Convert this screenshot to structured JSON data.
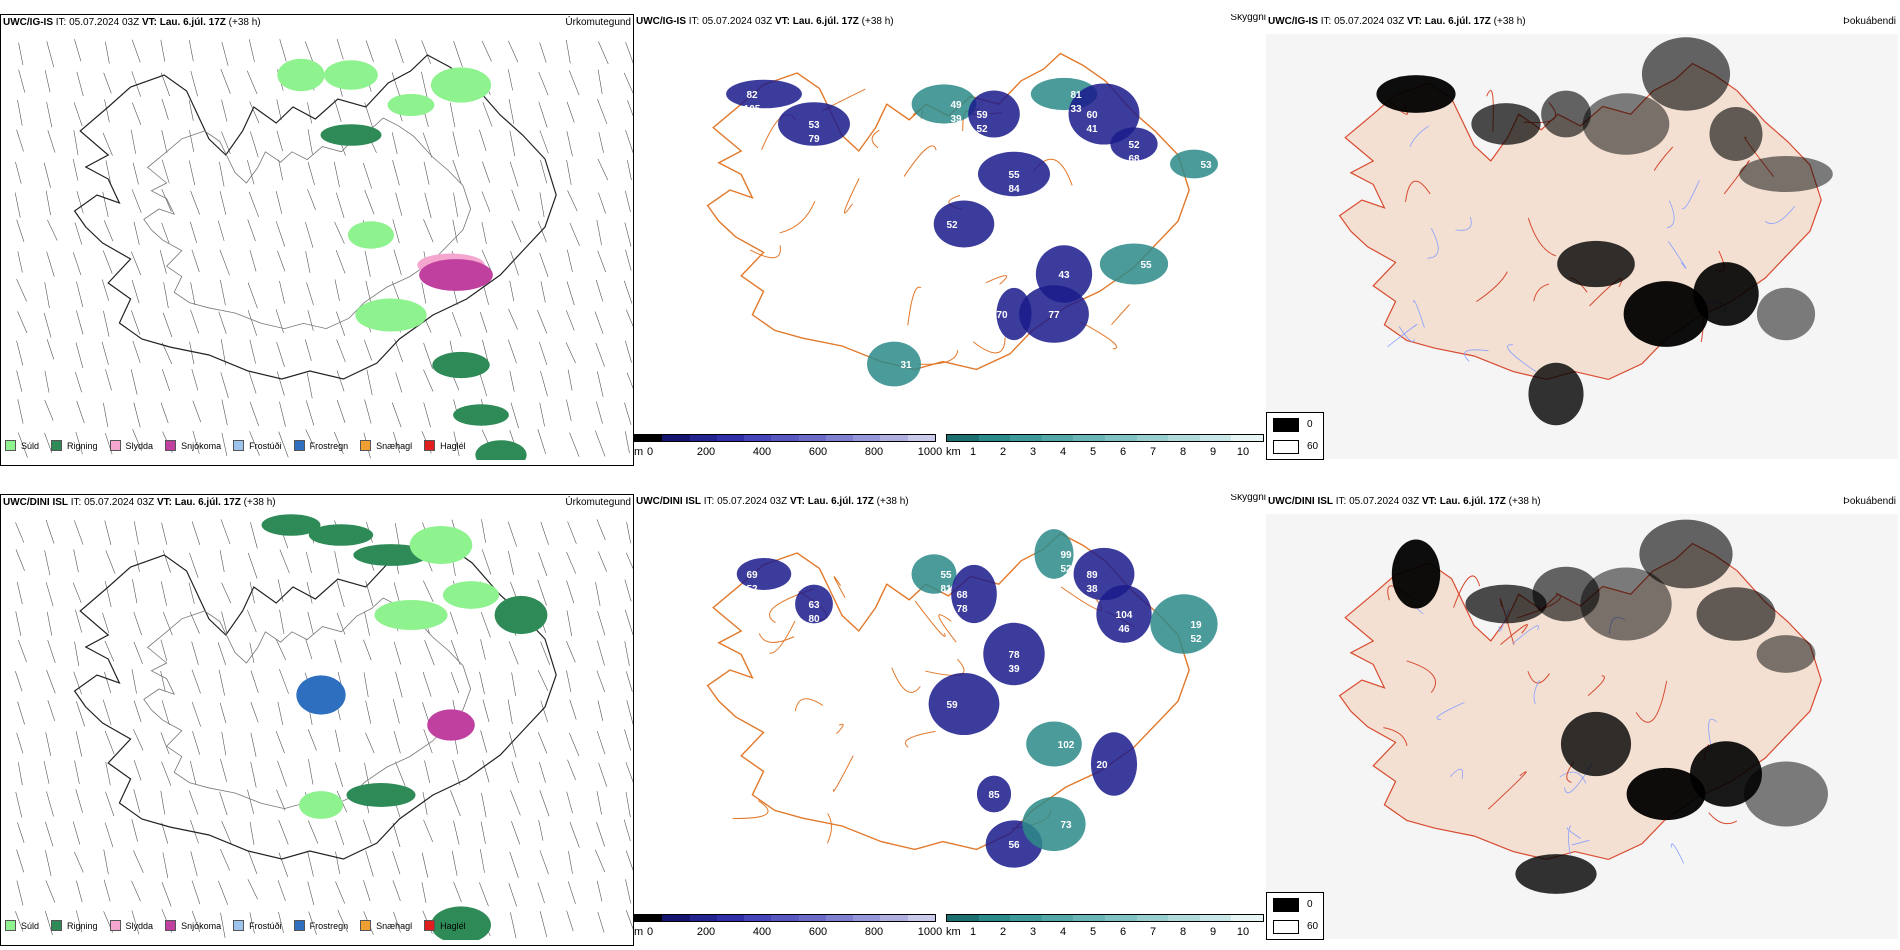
{
  "colors": {
    "drizzle": "#8ef28e",
    "rain": "#2e8b57",
    "sleet": "#f4a6cf",
    "snow": "#c040a0",
    "freezing_drizzle": "#9cc4ee",
    "freezing_rain": "#2f6fbf",
    "snow_pellets": "#f0a030",
    "hail": "#e02020",
    "land_beige": "#f3e0d2",
    "roads_orange": "#e2782a",
    "roads_red": "#d84a30",
    "visibility_dark": "#1a1a8c",
    "cloud_teal": "#2b8a8a"
  },
  "rows": [
    {
      "precip": {
        "model": "UWC/IG-IS",
        "it_label": "IT:",
        "it_value": "05.07.2024 03Z",
        "vt_label": "VT:",
        "vt_value": "Lau. 6.júl. 17Z",
        "lead": "(+38 h)",
        "right_title": "Úrkomutegund"
      },
      "visibility": {
        "model": "UWC/IG-IS",
        "it_label": "IT:",
        "it_value": "05.07.2024 03Z",
        "vt_label": "VT:",
        "vt_value": "Lau. 6.júl. 17Z",
        "lead": "(+38 h)",
        "right_title": "Skyggni",
        "labels": [
          "82",
          "53",
          "49",
          "59",
          "55",
          "81",
          "60",
          "52",
          "53",
          "52",
          "43",
          "55",
          "70",
          "77",
          "31",
          "105",
          "79",
          "39",
          "52",
          "84",
          "33",
          "41",
          "68"
        ]
      },
      "fog": {
        "model": "UWC/IG-IS",
        "it_label": "IT:",
        "it_value": "05.07.2024 03Z",
        "vt_label": "VT:",
        "vt_value": "Lau. 6.júl. 17Z",
        "lead": "(+38 h)",
        "right_title": "Þokuábendi"
      }
    },
    {
      "precip": {
        "model": "UWC/DINI ISL",
        "it_label": "IT:",
        "it_value": "05.07.2024 03Z",
        "vt_label": "VT:",
        "vt_value": "Lau. 6.júl. 17Z",
        "lead": "(+38 h)",
        "right_title": "Úrkomutegund"
      },
      "visibility": {
        "model": "UWC/DINI ISL",
        "it_label": "IT:",
        "it_value": "05.07.2024 03Z",
        "vt_label": "VT:",
        "vt_value": "Lau. 6.júl. 17Z",
        "lead": "(+38 h)",
        "right_title": "Skyggni",
        "labels": [
          "69",
          "63",
          "55",
          "68",
          "78",
          "99",
          "89",
          "104",
          "19",
          "59",
          "85",
          "102",
          "20",
          "56",
          "73",
          "52",
          "80",
          "81",
          "78",
          "39",
          "52",
          "38",
          "46",
          "52"
        ]
      },
      "fog": {
        "model": "UWC/DINI ISL",
        "it_label": "IT:",
        "it_value": "05.07.2024 03Z",
        "vt_label": "VT:",
        "vt_value": "Lau. 6.júl. 17Z",
        "lead": "(+38 h)",
        "right_title": "Þokuábendi"
      }
    }
  ],
  "precip_legend": [
    "Súld",
    "Rigning",
    "Slydda",
    "Snjókoma",
    "Frostúði",
    "Frostregn",
    "Snæhagl",
    "Haglél"
  ],
  "visibility_bar": {
    "unit": "m",
    "ticks": [
      "0",
      "200",
      "400",
      "600",
      "800",
      "1000"
    ]
  },
  "cloud_bar": {
    "unit": "km",
    "ticks": [
      "1",
      "2",
      "3",
      "4",
      "5",
      "6",
      "7",
      "8",
      "9",
      "10"
    ]
  },
  "fog_legend": [
    "0",
    "60"
  ]
}
